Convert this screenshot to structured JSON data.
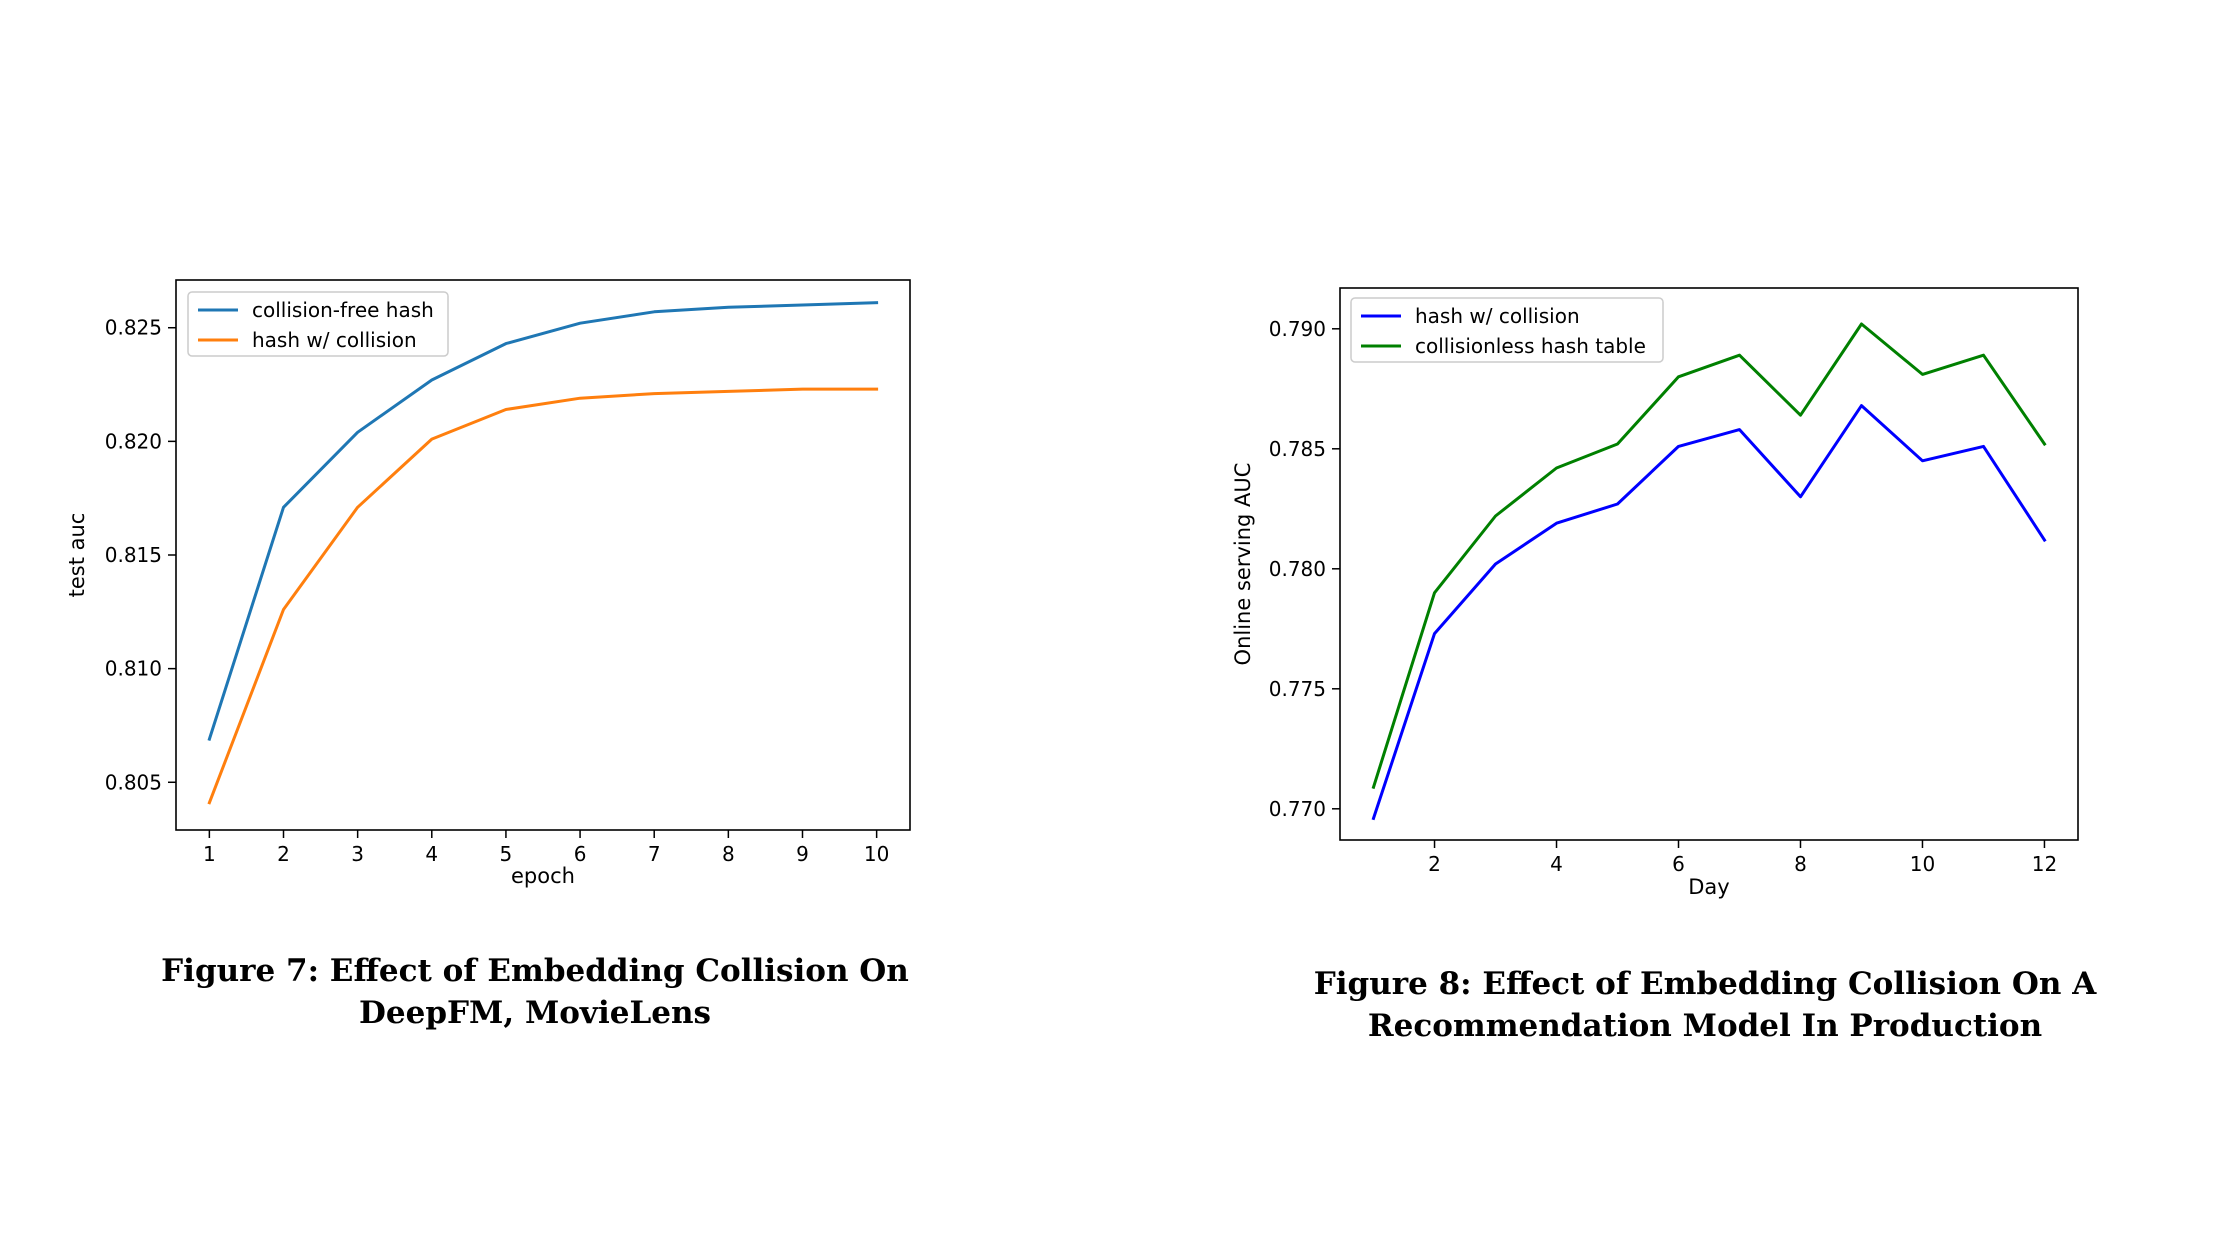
{
  "charts": [
    {
      "caption": "Figure 7: Effect of Embedding Collision On DeepFM, MovieLens",
      "chart_data": {
        "type": "line",
        "xlabel": "epoch",
        "ylabel": "test auc",
        "xlim": [
          0.55,
          10.45
        ],
        "ylim": [
          0.8029,
          0.8271
        ],
        "xticks": [
          1,
          2,
          3,
          4,
          5,
          6,
          7,
          8,
          9,
          10
        ],
        "xtick_labels": [
          "1",
          "2",
          "3",
          "4",
          "5",
          "6",
          "7",
          "8",
          "9",
          "10"
        ],
        "yticks": [
          0.805,
          0.81,
          0.815,
          0.82,
          0.825
        ],
        "ytick_labels": [
          "0.805",
          "0.810",
          "0.815",
          "0.820",
          "0.825"
        ],
        "grid": false,
        "legend_position": "upper-left",
        "x": [
          1,
          2,
          3,
          4,
          5,
          6,
          7,
          8,
          9,
          10
        ],
        "series": [
          {
            "name": "collision-free hash",
            "color": "#1f77b4",
            "values": [
              0.8069,
              0.8171,
              0.8204,
              0.8227,
              0.8243,
              0.8252,
              0.8257,
              0.8259,
              0.826,
              0.8261
            ]
          },
          {
            "name": "hash w/ collision",
            "color": "#ff7f0e",
            "values": [
              0.8041,
              0.8126,
              0.8171,
              0.8201,
              0.8214,
              0.8219,
              0.8221,
              0.8222,
              0.8223,
              0.8223
            ]
          }
        ]
      }
    },
    {
      "caption": "Figure 8: Effect of Embedding Collision On A Recommendation Model In Production",
      "chart_data": {
        "type": "line",
        "xlabel": "Day",
        "ylabel": "Online serving AUC",
        "xlim": [
          0.45,
          12.55
        ],
        "ylim": [
          0.7687,
          0.7917
        ],
        "xticks": [
          2,
          4,
          6,
          8,
          10,
          12
        ],
        "xtick_labels": [
          "2",
          "4",
          "6",
          "8",
          "10",
          "12"
        ],
        "yticks": [
          0.77,
          0.775,
          0.78,
          0.785,
          0.79
        ],
        "ytick_labels": [
          "0.770",
          "0.775",
          "0.780",
          "0.785",
          "0.790"
        ],
        "grid": false,
        "legend_position": "upper-left",
        "x": [
          1,
          2,
          3,
          4,
          5,
          6,
          7,
          8,
          9,
          10,
          11,
          12
        ],
        "series": [
          {
            "name": "hash w/ collision",
            "color": "#0000ff",
            "values": [
              0.7696,
              0.7773,
              0.7802,
              0.7819,
              0.7827,
              0.7851,
              0.7858,
              0.783,
              0.7868,
              0.7845,
              0.7851,
              0.7812
            ]
          },
          {
            "name": "collisionless hash table",
            "color": "#008000",
            "values": [
              0.7709,
              0.779,
              0.7822,
              0.7842,
              0.7852,
              0.788,
              0.7889,
              0.7864,
              0.7902,
              0.7881,
              0.7889,
              0.7852
            ]
          }
        ]
      }
    }
  ]
}
